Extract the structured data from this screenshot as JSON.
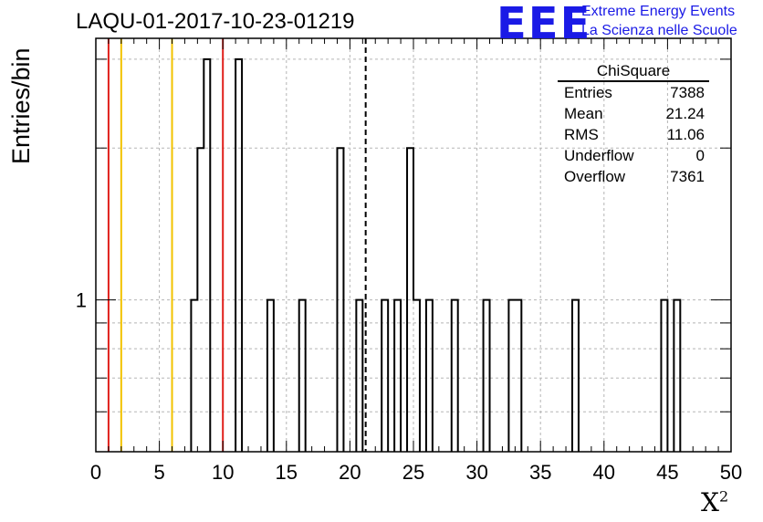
{
  "chart_data": {
    "type": "bar",
    "histogram": "step",
    "title": "LAQU-01-2017-10-23-01219",
    "xlabel": "X",
    "xlabel_sup": "2",
    "ylabel": "Entries/bin",
    "xlim": [
      0,
      50
    ],
    "ylim": [
      0.5,
      3.3
    ],
    "yscale": "log",
    "grid": true,
    "bin_width": 0.5,
    "x_ticks": [
      0,
      5,
      10,
      15,
      20,
      25,
      30,
      35,
      40,
      45,
      50
    ],
    "y_tick_labels": [
      {
        "value": 1,
        "label": "1"
      }
    ],
    "y_minor_ticks": [
      0.6,
      0.7,
      0.8,
      0.9,
      2,
      3
    ],
    "bins": [
      {
        "x": 7.5,
        "count": 1
      },
      {
        "x": 8.0,
        "count": 2
      },
      {
        "x": 8.5,
        "count": 3
      },
      {
        "x": 11.0,
        "count": 3
      },
      {
        "x": 13.5,
        "count": 1
      },
      {
        "x": 16.0,
        "count": 1
      },
      {
        "x": 19.0,
        "count": 2
      },
      {
        "x": 20.5,
        "count": 1
      },
      {
        "x": 22.5,
        "count": 1
      },
      {
        "x": 23.5,
        "count": 1
      },
      {
        "x": 24.5,
        "count": 2
      },
      {
        "x": 25.0,
        "count": 1
      },
      {
        "x": 26.0,
        "count": 1
      },
      {
        "x": 28.0,
        "count": 1
      },
      {
        "x": 30.5,
        "count": 1
      },
      {
        "x": 32.5,
        "count": 1
      },
      {
        "x": 33.0,
        "count": 1
      },
      {
        "x": 37.5,
        "count": 1
      },
      {
        "x": 44.5,
        "count": 1
      },
      {
        "x": 45.5,
        "count": 1
      }
    ],
    "reference_lines": [
      {
        "x": 1,
        "color": "#e0201b"
      },
      {
        "x": 2,
        "color": "#f2c200"
      },
      {
        "x": 6,
        "color": "#f2c200"
      },
      {
        "x": 10,
        "color": "#e0201b"
      }
    ],
    "mean_line": {
      "x": 21.24,
      "style": "dashed",
      "color": "#000000"
    },
    "stats_box": {
      "name": "ChiSquare",
      "placement": "top-right",
      "rows": [
        {
          "label": "Entries",
          "value": "7388"
        },
        {
          "label": "Mean",
          "value": "21.24"
        },
        {
          "label": "RMS",
          "value": "11.06"
        },
        {
          "label": "Underflow",
          "value": "0"
        },
        {
          "label": "Overflow",
          "value": "7361"
        }
      ]
    }
  },
  "logo": {
    "mark": "EEE",
    "line1": "Extreme Energy Events",
    "line2": "La Scienza nelle Scuole",
    "color": "#1a1ae6"
  }
}
